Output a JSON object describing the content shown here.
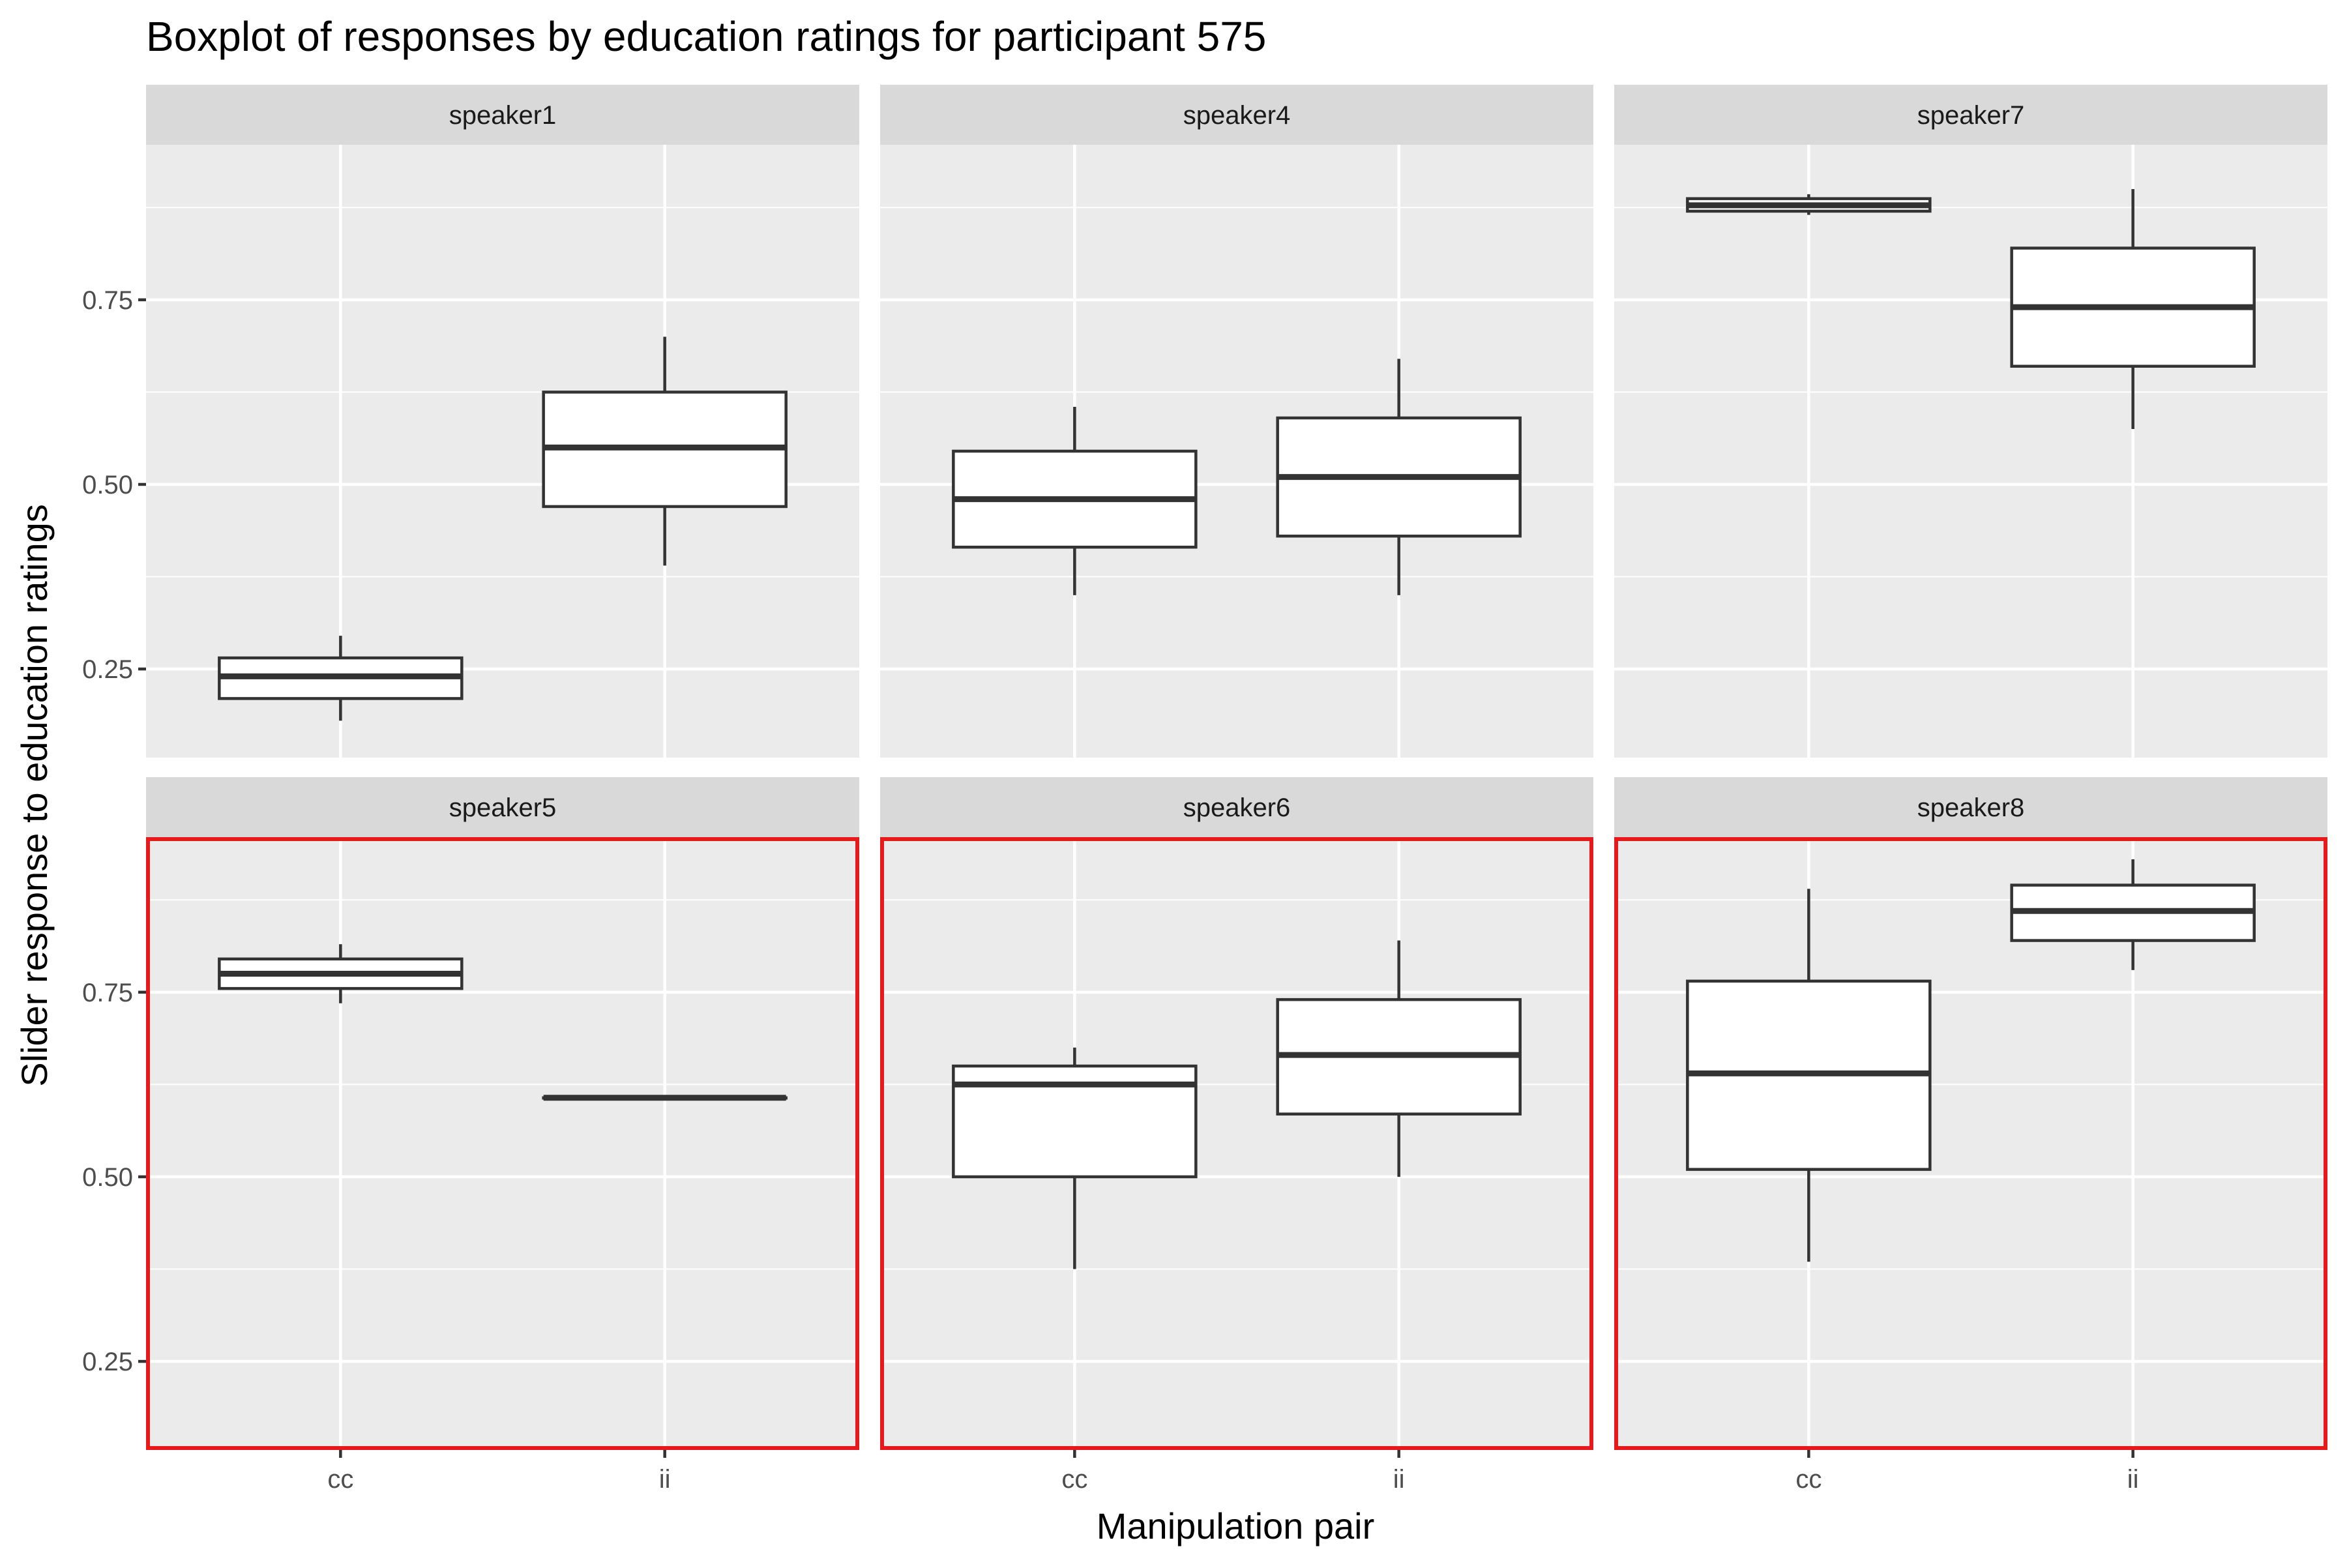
{
  "chart_data": {
    "type": "boxplot",
    "title": "Boxplot of responses by education ratings for participant 575",
    "xlabel": "Manipulation pair",
    "ylabel": "Slider response to education ratings",
    "categories": [
      "cc",
      "ii"
    ],
    "y_ticks": [
      0.25,
      0.5,
      0.75
    ],
    "y_tick_labels": [
      "0.25",
      "0.50",
      "0.75"
    ],
    "ylim": [
      0.13,
      0.96
    ],
    "grid": true,
    "facets": [
      {
        "name": "speaker1",
        "highlighted": false,
        "boxes": [
          {
            "category": "cc",
            "whisker_low": 0.18,
            "q1": 0.21,
            "median": 0.24,
            "q3": 0.265,
            "whisker_high": 0.295
          },
          {
            "category": "ii",
            "whisker_low": 0.39,
            "q1": 0.47,
            "median": 0.55,
            "q3": 0.625,
            "whisker_high": 0.7
          }
        ]
      },
      {
        "name": "speaker4",
        "highlighted": false,
        "boxes": [
          {
            "category": "cc",
            "whisker_low": 0.35,
            "q1": 0.415,
            "median": 0.48,
            "q3": 0.545,
            "whisker_high": 0.605
          },
          {
            "category": "ii",
            "whisker_low": 0.35,
            "q1": 0.43,
            "median": 0.51,
            "q3": 0.59,
            "whisker_high": 0.67
          }
        ]
      },
      {
        "name": "speaker7",
        "highlighted": false,
        "boxes": [
          {
            "category": "cc",
            "whisker_low": 0.865,
            "q1": 0.87,
            "median": 0.878,
            "q3": 0.887,
            "whisker_high": 0.893
          },
          {
            "category": "ii",
            "whisker_low": 0.575,
            "q1": 0.66,
            "median": 0.74,
            "q3": 0.82,
            "whisker_high": 0.9
          }
        ]
      },
      {
        "name": "speaker5",
        "highlighted": true,
        "boxes": [
          {
            "category": "cc",
            "whisker_low": 0.735,
            "q1": 0.755,
            "median": 0.775,
            "q3": 0.795,
            "whisker_high": 0.815
          },
          {
            "category": "ii",
            "whisker_low": 0.607,
            "q1": 0.607,
            "median": 0.607,
            "q3": 0.607,
            "whisker_high": 0.607
          }
        ]
      },
      {
        "name": "speaker6",
        "highlighted": true,
        "boxes": [
          {
            "category": "cc",
            "whisker_low": 0.375,
            "q1": 0.5,
            "median": 0.625,
            "q3": 0.65,
            "whisker_high": 0.675
          },
          {
            "category": "ii",
            "whisker_low": 0.5,
            "q1": 0.585,
            "median": 0.665,
            "q3": 0.74,
            "whisker_high": 0.82
          }
        ]
      },
      {
        "name": "speaker8",
        "highlighted": true,
        "boxes": [
          {
            "category": "cc",
            "whisker_low": 0.385,
            "q1": 0.51,
            "median": 0.64,
            "q3": 0.765,
            "whisker_high": 0.89
          },
          {
            "category": "ii",
            "whisker_low": 0.78,
            "q1": 0.82,
            "median": 0.86,
            "q3": 0.895,
            "whisker_high": 0.93
          }
        ]
      }
    ],
    "colors": {
      "panel_background": "#ebebeb",
      "strip_background": "#d9d9d9",
      "gridline": "#ffffff",
      "box_fill": "#ffffff",
      "box_stroke": "#333333",
      "highlight": "#e8191a"
    }
  }
}
